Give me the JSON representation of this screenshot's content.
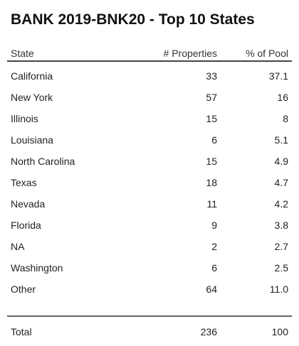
{
  "chart_data": {
    "type": "table",
    "title": "BANK 2019-BNK20 - Top 10 States",
    "columns": [
      "State",
      "# Properties",
      "% of Pool"
    ],
    "rows": [
      {
        "state": "California",
        "properties": "33",
        "pool": "37.1"
      },
      {
        "state": "New York",
        "properties": "57",
        "pool": "16"
      },
      {
        "state": "Illinois",
        "properties": "15",
        "pool": "8"
      },
      {
        "state": "Louisiana",
        "properties": "6",
        "pool": "5.1"
      },
      {
        "state": "North Carolina",
        "properties": "15",
        "pool": "4.9"
      },
      {
        "state": "Texas",
        "properties": "18",
        "pool": "4.7"
      },
      {
        "state": "Nevada",
        "properties": "11",
        "pool": "4.2"
      },
      {
        "state": "Florida",
        "properties": "9",
        "pool": "3.8"
      },
      {
        "state": "NA",
        "properties": "2",
        "pool": "2.7"
      },
      {
        "state": "Washington",
        "properties": "6",
        "pool": "2.5"
      },
      {
        "state": "Other",
        "properties": "64",
        "pool": "11.0"
      }
    ],
    "total": {
      "label": "Total",
      "properties": "236",
      "pool": "100"
    }
  }
}
